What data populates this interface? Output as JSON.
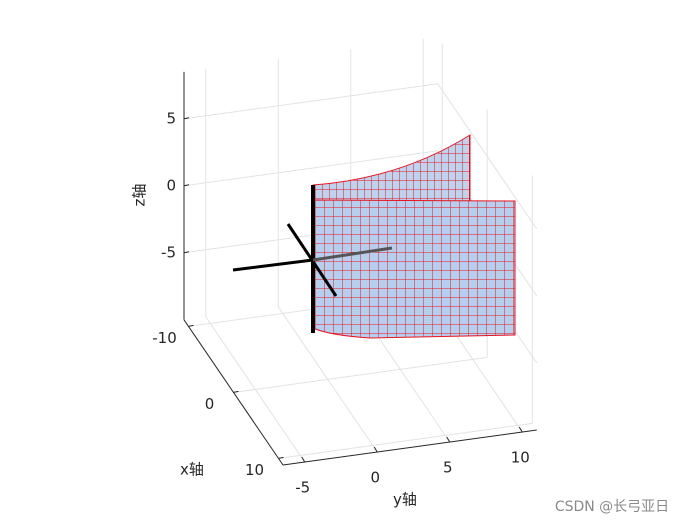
{
  "chart_data": {
    "type": "surface3d",
    "xlabel": "x轴",
    "ylabel": "y轴",
    "zlabel": "z轴",
    "xlim": [
      -11,
      11
    ],
    "ylim": [
      -6.5,
      11
    ],
    "zlim": [
      -10,
      8.5
    ],
    "xticks": [
      -10,
      0,
      10
    ],
    "yticks": [
      -5,
      0,
      5,
      10
    ],
    "zticks": [
      -5,
      0,
      5
    ],
    "grid": true
  },
  "watermark": "CSDN @长弓亚日"
}
